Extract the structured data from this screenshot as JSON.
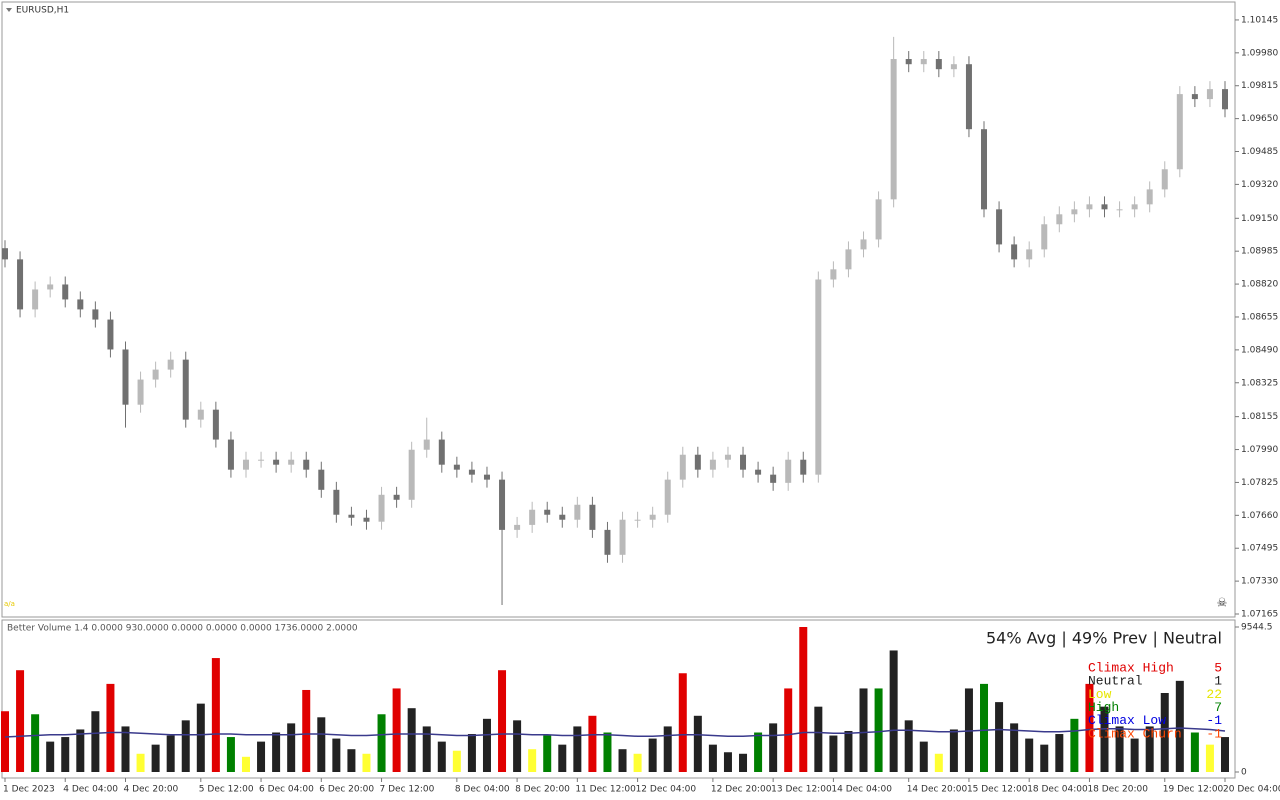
{
  "chart_data": {
    "type": "candlestick",
    "title": "EURUSD,H1",
    "categories": [
      "1 Dec 2023",
      null,
      null,
      null,
      "4 Dec 04:00",
      null,
      null,
      null,
      "4 Dec 20:00",
      null,
      null,
      null,
      null,
      "5 Dec 12:00",
      null,
      null,
      null,
      "6 Dec 04:00",
      null,
      null,
      null,
      "6 Dec 20:00",
      null,
      null,
      null,
      "7 Dec 12:00",
      null,
      null,
      null,
      null,
      "8 Dec 04:00",
      null,
      null,
      null,
      "8 Dec 20:00",
      null,
      null,
      null,
      "11 Dec 12:00",
      null,
      null,
      null,
      "12 Dec 04:00",
      null,
      null,
      null,
      null,
      "12 Dec 20:00",
      null,
      null,
      null,
      "13 Dec 12:00",
      null,
      null,
      null,
      "14 Dec 04:00",
      null,
      null,
      null,
      null,
      "14 Dec 20:00",
      null,
      null,
      null,
      "15 Dec 12:00",
      null,
      null,
      null,
      "18 Dec 04:00",
      null,
      null,
      null,
      "18 Dec 20:00",
      null,
      null,
      null,
      null,
      "19 Dec 12:00",
      null,
      null,
      null,
      "20 Dec 04:00"
    ],
    "open": [
      1.09,
      1.08944,
      1.08693,
      1.08793,
      1.08818,
      1.08743,
      1.08693,
      1.08642,
      1.08492,
      1.08215,
      1.08341,
      1.08391,
      1.08441,
      1.0814,
      1.0819,
      1.0804,
      1.07889,
      1.07939,
      1.07939,
      1.07914,
      1.07939,
      1.07889,
      1.07788,
      1.07663,
      1.07648,
      1.07628,
      1.07763,
      1.07738,
      1.07989,
      1.0804,
      1.07914,
      1.07889,
      1.07864,
      1.07839,
      1.07587,
      1.07612,
      1.07688,
      1.07663,
      1.07638,
      1.07713,
      1.07587,
      1.07462,
      1.07638,
      1.07638,
      1.07663,
      1.07839,
      1.07964,
      1.07889,
      1.07939,
      1.07964,
      1.07889,
      1.07864,
      1.07823,
      1.07939,
      1.07864,
      1.08843,
      1.08894,
      1.08994,
      1.09044,
      1.09245,
      1.09949,
      1.09923,
      1.09949,
      1.09898,
      1.09923,
      1.09597,
      1.09195,
      1.09019,
      1.08944,
      1.08994,
      1.0912,
      1.0917,
      1.09195,
      1.0922,
      1.09195,
      1.09195,
      1.0922,
      1.09295,
      1.09396,
      1.09773,
      1.09748,
      1.09798
    ],
    "high": [
      1.0904,
      1.08984,
      1.08833,
      1.08858,
      1.08858,
      1.08783,
      1.08733,
      1.08682,
      1.08532,
      1.08381,
      1.08431,
      1.08481,
      1.08481,
      1.0823,
      1.0823,
      1.0808,
      1.07979,
      1.07979,
      1.07979,
      1.07979,
      1.07979,
      1.07929,
      1.07828,
      1.07703,
      1.07688,
      1.07803,
      1.07803,
      1.08029,
      1.0815,
      1.0808,
      1.07954,
      1.07929,
      1.07904,
      1.07879,
      1.07652,
      1.07728,
      1.07728,
      1.07703,
      1.07753,
      1.07753,
      1.07627,
      1.07678,
      1.07678,
      1.07703,
      1.07879,
      1.08004,
      1.08004,
      1.07979,
      1.08004,
      1.08004,
      1.07929,
      1.07904,
      1.07979,
      1.07979,
      1.08883,
      1.08934,
      1.09034,
      1.09084,
      1.09285,
      1.1006,
      1.09989,
      1.09989,
      1.09989,
      1.09963,
      1.09963,
      1.09637,
      1.09235,
      1.09059,
      1.09034,
      1.0916,
      1.0921,
      1.09235,
      1.0926,
      1.0926,
      1.09235,
      1.0926,
      1.09335,
      1.09436,
      1.09813,
      1.09813,
      1.09838,
      1.09838
    ],
    "low": [
      1.08904,
      1.08653,
      1.08653,
      1.08753,
      1.08703,
      1.08653,
      1.08602,
      1.08452,
      1.081,
      1.08175,
      1.08301,
      1.08351,
      1.081,
      1.081,
      1.08,
      1.07849,
      1.07849,
      1.07899,
      1.07874,
      1.07874,
      1.07849,
      1.07748,
      1.07623,
      1.07608,
      1.07588,
      1.07588,
      1.07698,
      1.07698,
      1.07949,
      1.07874,
      1.07849,
      1.07824,
      1.07799,
      1.0721,
      1.07547,
      1.07572,
      1.07623,
      1.07598,
      1.07598,
      1.07547,
      1.07422,
      1.07422,
      1.07598,
      1.07598,
      1.07623,
      1.07799,
      1.07849,
      1.07849,
      1.07899,
      1.07849,
      1.07824,
      1.07783,
      1.07783,
      1.07824,
      1.07824,
      1.08803,
      1.08854,
      1.08954,
      1.09004,
      1.09205,
      1.09883,
      1.09883,
      1.09858,
      1.09858,
      1.09557,
      1.09155,
      1.08979,
      1.08904,
      1.08904,
      1.08954,
      1.0908,
      1.0913,
      1.09155,
      1.09155,
      1.09155,
      1.09155,
      1.0918,
      1.09255,
      1.09356,
      1.09708,
      1.09708,
      1.09657
    ],
    "close": [
      1.08944,
      1.08693,
      1.08793,
      1.08818,
      1.08743,
      1.08693,
      1.08642,
      1.08492,
      1.08215,
      1.08341,
      1.08391,
      1.08441,
      1.0814,
      1.0819,
      1.0804,
      1.07889,
      1.07939,
      1.07939,
      1.07914,
      1.07939,
      1.07889,
      1.07788,
      1.07663,
      1.07648,
      1.07628,
      1.07763,
      1.07738,
      1.07989,
      1.0804,
      1.07914,
      1.07889,
      1.07864,
      1.07839,
      1.07587,
      1.07612,
      1.07688,
      1.07663,
      1.07638,
      1.07713,
      1.07587,
      1.07462,
      1.07638,
      1.07638,
      1.07663,
      1.07839,
      1.07964,
      1.07889,
      1.07939,
      1.07964,
      1.07889,
      1.07864,
      1.07823,
      1.07939,
      1.07864,
      1.08843,
      1.08894,
      1.08994,
      1.09044,
      1.09245,
      1.09949,
      1.09923,
      1.09949,
      1.09898,
      1.09923,
      1.09597,
      1.09195,
      1.09019,
      1.08944,
      1.08994,
      1.0912,
      1.0917,
      1.09195,
      1.0922,
      1.09195,
      1.09195,
      1.0922,
      1.09295,
      1.09396,
      1.09773,
      1.09748,
      1.09798,
      1.09697
    ],
    "up_color": "#b9b9b9",
    "down_color": "#707070",
    "ylim": [
      1.0715,
      1.10235
    ],
    "yticks": [
      1.10145,
      {
        "value": 1.0998,
        "label": "1.09980"
      },
      1.09815,
      {
        "value": 1.0965,
        "label": "1.09650"
      },
      1.09485,
      {
        "value": 1.0932,
        "label": "1.09320"
      },
      {
        "value": 1.0915,
        "label": "1.09150"
      },
      1.08985,
      {
        "value": 1.0882,
        "label": "1.08820"
      },
      1.08655,
      {
        "value": 1.0849,
        "label": "1.08490"
      },
      1.08325,
      1.08155,
      {
        "value": 1.0799,
        "label": "1.07990"
      },
      1.07825,
      {
        "value": 1.0766,
        "label": "1.07660"
      },
      1.07495,
      {
        "value": 1.0733,
        "label": "1.07330"
      },
      1.07165
    ],
    "volume": {
      "type": "bar",
      "title": "Better Volume 1.4 0.0000 930.0000 0.0000 0.0000 0.0000 1736.0000 2.0000",
      "status": "54% Avg | 49% Prev | Neutral",
      "values": [
        4000,
        6700,
        3800,
        2000,
        2300,
        2800,
        4000,
        5800,
        3000,
        1200,
        1800,
        2400,
        3400,
        4500,
        7500,
        2300,
        1000,
        2000,
        2600,
        3200,
        5400,
        3600,
        2200,
        1500,
        1200,
        3800,
        5500,
        4200,
        3000,
        2000,
        1400,
        2500,
        3500,
        6700,
        3400,
        1500,
        2400,
        1800,
        3000,
        3700,
        2600,
        1500,
        1200,
        2200,
        3000,
        6500,
        3700,
        1800,
        1300,
        1200,
        2600,
        3200,
        5500,
        9544.5,
        4300,
        2400,
        2700,
        5500,
        5500,
        8000,
        3400,
        2000,
        1200,
        2800,
        5500,
        5800,
        4600,
        3200,
        2200,
        1800,
        2500,
        3500,
        5800,
        4300,
        3000,
        2200,
        3000,
        5200,
        6000,
        2600,
        1800,
        2300
      ],
      "colors": [
        "#e00000",
        "#e00000",
        "#008000",
        "#222222",
        "#222222",
        "#222222",
        "#222222",
        "#e00000",
        "#222222",
        "#ffff33",
        "#222222",
        "#222222",
        "#222222",
        "#222222",
        "#e00000",
        "#008000",
        "#ffff33",
        "#222222",
        "#222222",
        "#222222",
        "#e00000",
        "#222222",
        "#222222",
        "#222222",
        "#ffff33",
        "#008000",
        "#e00000",
        "#222222",
        "#222222",
        "#222222",
        "#ffff33",
        "#222222",
        "#222222",
        "#e00000",
        "#222222",
        "#ffff33",
        "#008000",
        "#222222",
        "#222222",
        "#e00000",
        "#008000",
        "#222222",
        "#ffff33",
        "#222222",
        "#222222",
        "#e00000",
        "#222222",
        "#222222",
        "#222222",
        "#222222",
        "#008000",
        "#222222",
        "#e00000",
        "#e00000",
        "#222222",
        "#222222",
        "#222222",
        "#222222",
        "#008000",
        "#222222",
        "#222222",
        "#222222",
        "#ffff33",
        "#222222",
        "#222222",
        "#008000",
        "#222222",
        "#222222",
        "#222222",
        "#222222",
        "#222222",
        "#008000",
        "#e00000",
        "#222222",
        "#222222",
        "#222222",
        "#222222",
        "#222222",
        "#222222",
        "#008000",
        "#ffff33",
        "#222222"
      ],
      "average": {
        "color": "#3a3a8c",
        "values": [
          2300,
          2350,
          2400,
          2450,
          2450,
          2500,
          2550,
          2600,
          2600,
          2550,
          2500,
          2450,
          2450,
          2450,
          2500,
          2500,
          2450,
          2450,
          2450,
          2450,
          2500,
          2500,
          2450,
          2400,
          2400,
          2450,
          2500,
          2500,
          2500,
          2450,
          2400,
          2400,
          2450,
          2500,
          2500,
          2450,
          2450,
          2400,
          2400,
          2450,
          2450,
          2400,
          2350,
          2350,
          2400,
          2450,
          2450,
          2400,
          2350,
          2350,
          2400,
          2400,
          2450,
          2600,
          2600,
          2550,
          2550,
          2600,
          2650,
          2750,
          2750,
          2700,
          2650,
          2650,
          2700,
          2750,
          2800,
          2750,
          2700,
          2650,
          2650,
          2700,
          2800,
          2850,
          2850,
          2800,
          2800,
          2850,
          2900,
          2850,
          2800,
          2700
        ]
      },
      "ylim": [
        0,
        9544.5
      ],
      "yticks": [
        0,
        9544.5
      ],
      "legend": [
        {
          "name": "Climax High",
          "count": 5,
          "color": "#e00000"
        },
        {
          "name": "Neutral",
          "count": 1,
          "color": "#222222"
        },
        {
          "name": "Low",
          "count": 22,
          "color": "#e6e600"
        },
        {
          "name": "High",
          "count": 7,
          "color": "#008000"
        },
        {
          "name": "Climax Low",
          "count": -1,
          "color": "#0000e0"
        },
        {
          "name": "Climax Churn",
          "count": -1,
          "color": "#ff4500"
        }
      ]
    }
  }
}
